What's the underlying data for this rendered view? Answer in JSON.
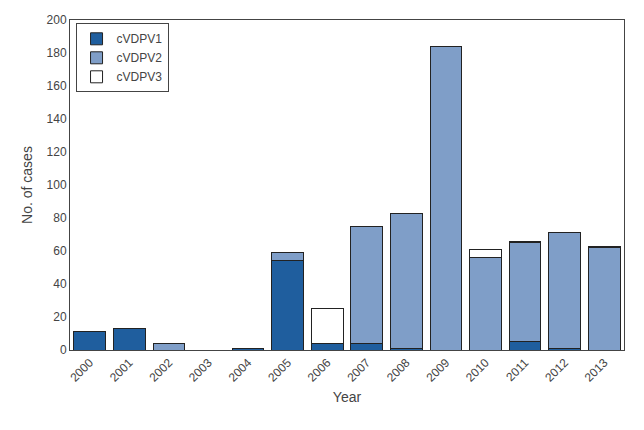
{
  "chart_data": {
    "type": "bar",
    "stacked": true,
    "xlabel": "Year",
    "ylabel": "No. of cases",
    "categories": [
      "2000",
      "2001",
      "2002",
      "2003",
      "2004",
      "2005",
      "2006",
      "2007",
      "2008",
      "2009",
      "2010",
      "2011",
      "2012",
      "2013"
    ],
    "series": [
      {
        "name": "cVDPV1",
        "color": "#1f5e9e",
        "values": [
          11,
          13,
          0,
          0,
          1,
          54,
          4,
          4,
          1,
          0,
          0,
          5,
          1,
          0
        ]
      },
      {
        "name": "cVDPV2",
        "color": "#7f9ec8",
        "values": [
          0,
          0,
          4,
          0,
          0,
          5,
          0,
          71,
          82,
          184,
          56,
          60,
          70,
          62
        ]
      },
      {
        "name": "cVDPV3",
        "color": "#ffffff",
        "values": [
          0,
          0,
          0,
          0,
          0,
          0,
          21,
          0,
          0,
          0,
          5,
          1,
          0,
          1
        ]
      }
    ],
    "ylim": [
      0,
      200
    ],
    "yticks": [
      0,
      20,
      40,
      60,
      80,
      100,
      120,
      140,
      160,
      180,
      200
    ],
    "grid": false,
    "legend": "upper left"
  }
}
